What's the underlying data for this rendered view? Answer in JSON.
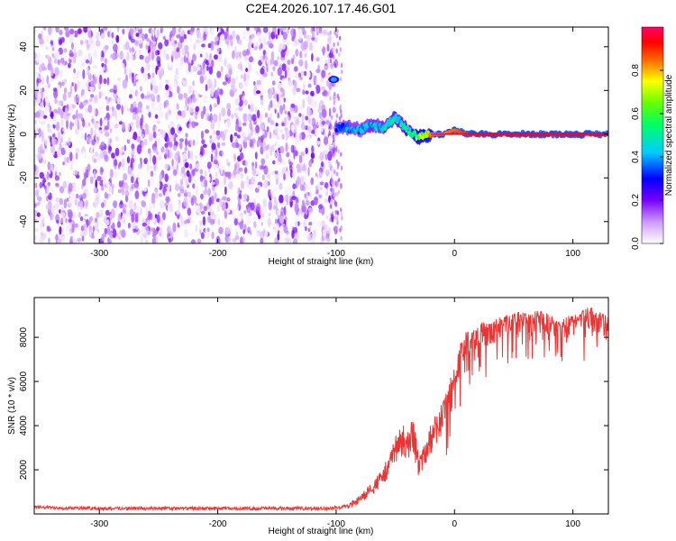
{
  "figure_title": "C2E4.2026.107.17.46.G01",
  "chart_data": [
    {
      "type": "heatmap",
      "title": "C2E4.2026.107.17.46.G01",
      "xlabel": "Height of straight line (km)",
      "ylabel": "Frequency (Hz)",
      "xlim": [
        -355,
        130
      ],
      "ylim": [
        -50,
        49
      ],
      "xticks": [
        -300,
        -200,
        -100,
        0,
        100
      ],
      "yticks": [
        -40,
        -20,
        0,
        20,
        40
      ],
      "colorbar": {
        "label": "Normalized spectral amplitude",
        "range": [
          0.0,
          1.0
        ],
        "ticks": [
          0.0,
          0.2,
          0.4,
          0.6,
          0.8
        ],
        "tick_labels": [
          "0.0",
          "0.2",
          "0.4",
          "0.6",
          "0.8"
        ],
        "colors": [
          "#ffffff",
          "#7700ff",
          "#0000ff",
          "#00ffff",
          "#00ff00",
          "#ffff00",
          "#ff0000",
          "#ff0066"
        ]
      },
      "noise_region": {
        "x_range": [
          -355,
          -100
        ],
        "frequency_range": [
          -50,
          49
        ],
        "amplitude_range": [
          0.0,
          0.2
        ]
      },
      "signal_track": {
        "x": [
          -100,
          -90,
          -80,
          -70,
          -60,
          -50,
          -45,
          -40,
          -35,
          -30,
          -20,
          -10,
          0,
          10,
          20,
          40,
          60,
          80,
          100,
          130
        ],
        "frequency": [
          3,
          3,
          2,
          4,
          3,
          8,
          5,
          2,
          0,
          -1,
          0,
          0,
          2,
          0,
          0,
          0,
          0,
          0,
          0,
          0
        ],
        "amplitude": [
          0.35,
          0.4,
          0.4,
          0.45,
          0.45,
          0.5,
          0.5,
          0.55,
          0.65,
          0.7,
          0.8,
          0.85,
          0.85,
          0.9,
          0.95,
          0.95,
          0.95,
          0.95,
          0.95,
          0.95
        ]
      },
      "side_blob": {
        "x": -100,
        "frequency": 25,
        "amplitude": 0.4
      }
    },
    {
      "type": "line",
      "xlabel": "Height of straight line (km)",
      "ylabel": "SNR (10 * v/v)",
      "xlim": [
        -355,
        130
      ],
      "ylim": [
        0,
        9800
      ],
      "xticks": [
        -300,
        -200,
        -100,
        0,
        100
      ],
      "yticks": [
        2000,
        4000,
        6000,
        8000
      ],
      "series": [
        {
          "name": "SNR",
          "color": "#ee3333",
          "x": [
            -355,
            -300,
            -250,
            -200,
            -150,
            -110,
            -100,
            -90,
            -80,
            -70,
            -60,
            -50,
            -45,
            -40,
            -35,
            -30,
            -25,
            -20,
            -10,
            0,
            5,
            10,
            20,
            30,
            40,
            50,
            60,
            70,
            80,
            90,
            100,
            110,
            120,
            130
          ],
          "mean": [
            300,
            250,
            250,
            250,
            250,
            250,
            280,
            350,
            700,
            1200,
            1800,
            3000,
            3500,
            3200,
            3600,
            2200,
            2800,
            3500,
            4500,
            6000,
            7200,
            7700,
            8100,
            8300,
            8500,
            8700,
            8800,
            8800,
            8700,
            8500,
            8600,
            8900,
            8900,
            8500
          ],
          "spread": [
            150,
            150,
            150,
            150,
            150,
            150,
            180,
            250,
            450,
            700,
            1000,
            1500,
            1800,
            1800,
            2000,
            1300,
            1400,
            1600,
            1800,
            2000,
            1800,
            1600,
            1500,
            1400,
            1300,
            1200,
            1200,
            1200,
            1100,
            1100,
            1300,
            1300,
            1300,
            1400
          ]
        }
      ]
    }
  ]
}
